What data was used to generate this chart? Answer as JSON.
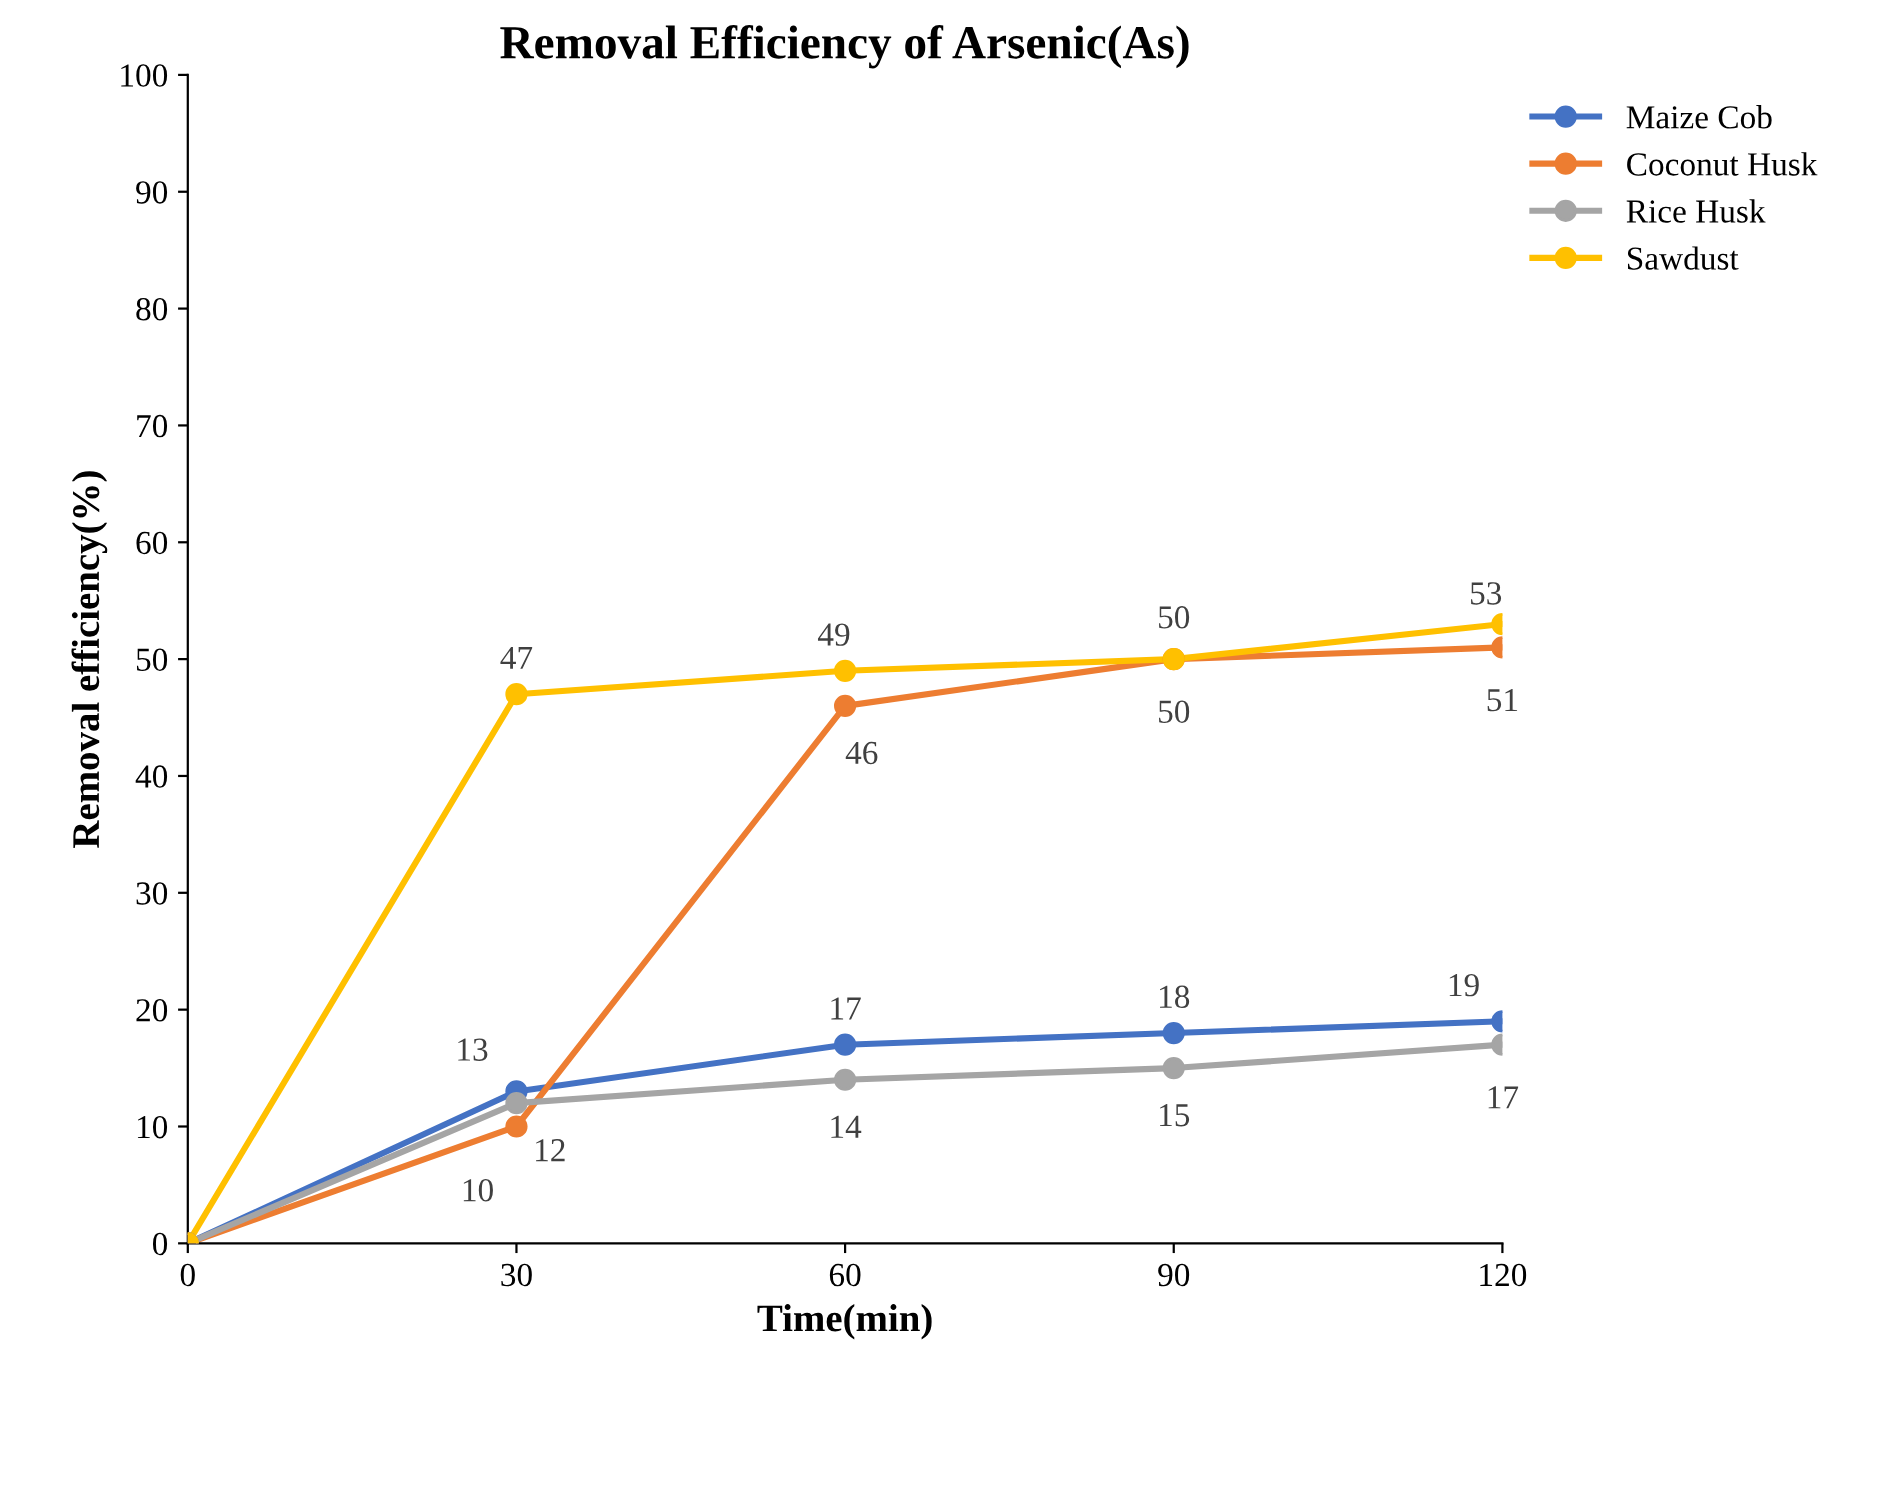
{
  "chart_data": {
    "type": "line",
    "title": "Removal Efficiency of Arsenic(As)",
    "xlabel": "Time(min)",
    "ylabel": "Removal efficiency(%)",
    "x": [
      0,
      30,
      60,
      90,
      120
    ],
    "series": [
      {
        "name": "Maize Cob",
        "color": "#4472c4",
        "values": [
          0,
          13,
          17,
          18,
          19
        ],
        "value_labels": [
          null,
          "13",
          "17",
          "18",
          "19"
        ]
      },
      {
        "name": "Coconut Husk",
        "color": "#ed7d31",
        "values": [
          0,
          10,
          46,
          50,
          51
        ],
        "value_labels": [
          null,
          "10",
          "46",
          "50",
          "51"
        ]
      },
      {
        "name": "Rice Husk",
        "color": "#a5a5a5",
        "values": [
          0,
          12,
          14,
          15,
          17
        ],
        "value_labels": [
          null,
          "12",
          "14",
          "15",
          "17"
        ]
      },
      {
        "name": "Sawdust",
        "color": "#ffc000",
        "values": [
          0,
          47,
          49,
          50,
          53
        ],
        "value_labels": [
          null,
          "47",
          "49",
          "50",
          "53"
        ]
      }
    ],
    "xlim": [
      0,
      120
    ],
    "xticks": [
      0,
      30,
      60,
      90,
      120
    ],
    "ylim": [
      0,
      100
    ],
    "yticks": [
      0,
      10,
      20,
      30,
      40,
      50,
      60,
      70,
      80,
      90,
      100
    ],
    "grid": false,
    "legend": "top right",
    "marker": "circle",
    "line_style": "solid"
  }
}
